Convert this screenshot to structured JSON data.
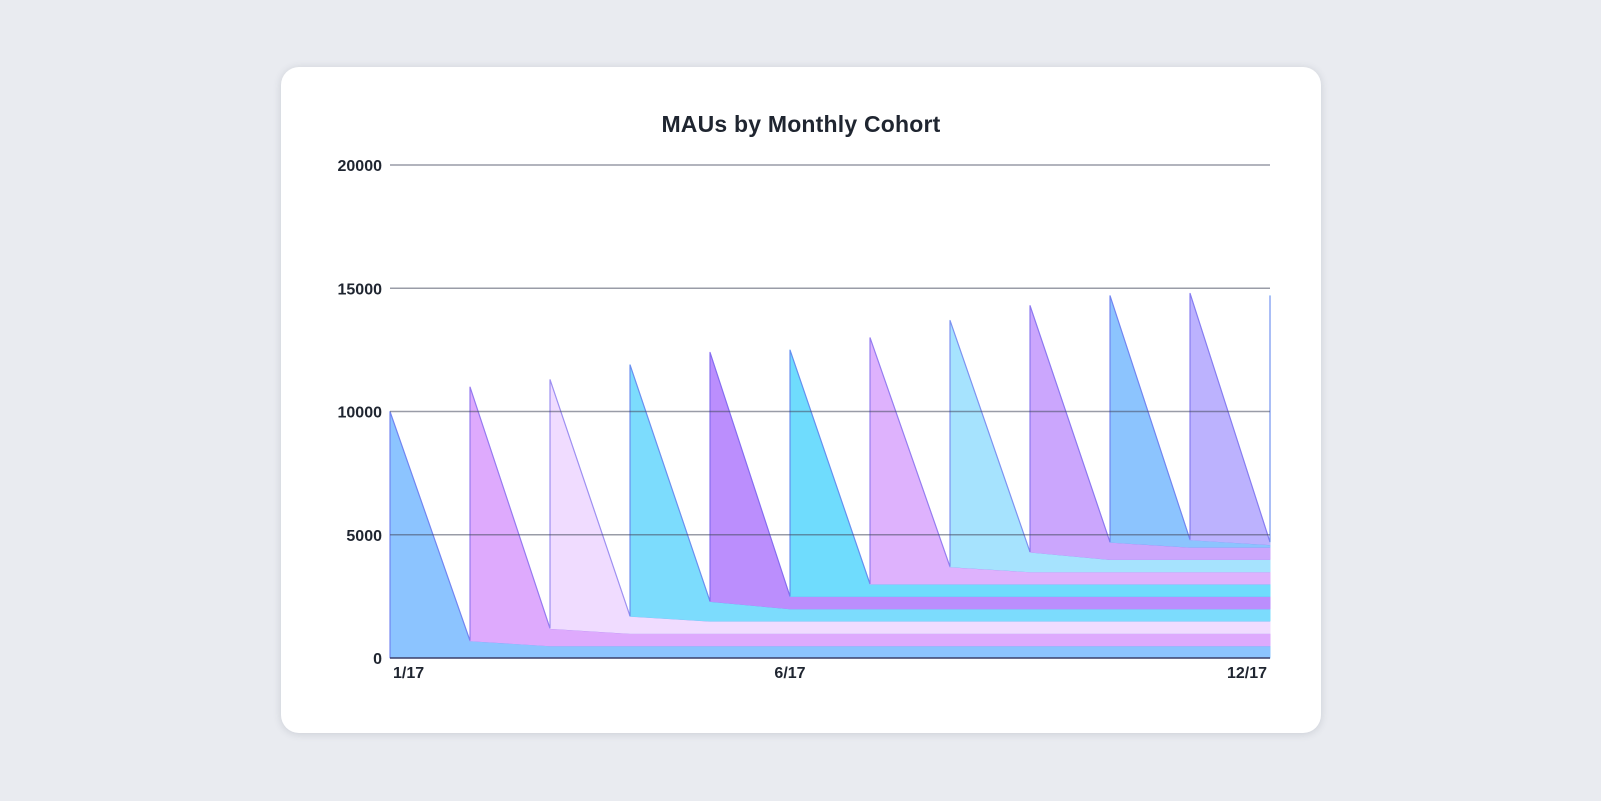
{
  "chart_data": {
    "type": "area",
    "stacked": true,
    "title": "MAUs by Monthly Cohort",
    "xlabel": "",
    "ylabel": "",
    "x": [
      "1/17",
      "2/17",
      "3/17",
      "4/17",
      "5/17",
      "6/17",
      "7/17",
      "8/17",
      "9/17",
      "10/17",
      "11/17",
      "12/17"
    ],
    "x_tick_labels": [
      "1/17",
      "6/17",
      "12/17"
    ],
    "y_tick_labels": [
      "0",
      "5000",
      "10000",
      "15000",
      "20000"
    ],
    "ylim": [
      0,
      20000
    ],
    "grid": true,
    "legend": "none",
    "colors": [
      "#8cc4ff",
      "#deaafd",
      "#f0dcff",
      "#7cdcfd",
      "#bb8efd",
      "#6fdcfd",
      "#deb2fd",
      "#a6e3fe",
      "#cba6fd",
      "#8cc4fe",
      "#bcb2fe",
      "#7de1fe"
    ],
    "series": [
      {
        "values": [
          10000,
          700,
          500,
          500,
          500,
          500,
          500,
          500,
          500,
          500,
          500,
          500
        ]
      },
      {
        "values": [
          null,
          10300,
          700,
          500,
          500,
          500,
          500,
          500,
          500,
          500,
          500,
          500
        ]
      },
      {
        "values": [
          null,
          null,
          10100,
          700,
          500,
          500,
          500,
          500,
          500,
          500,
          500,
          500
        ]
      },
      {
        "values": [
          null,
          null,
          null,
          10200,
          800,
          500,
          500,
          500,
          500,
          500,
          500,
          500
        ]
      },
      {
        "values": [
          null,
          null,
          null,
          null,
          10100,
          500,
          500,
          500,
          500,
          500,
          500,
          500
        ]
      },
      {
        "values": [
          null,
          null,
          null,
          null,
          null,
          10000,
          500,
          500,
          500,
          500,
          500,
          500
        ]
      },
      {
        "values": [
          null,
          null,
          null,
          null,
          null,
          null,
          10000,
          700,
          500,
          500,
          500,
          500
        ]
      },
      {
        "values": [
          null,
          null,
          null,
          null,
          null,
          null,
          null,
          10000,
          800,
          500,
          500,
          500
        ]
      },
      {
        "values": [
          null,
          null,
          null,
          null,
          null,
          null,
          null,
          null,
          10000,
          700,
          500,
          500
        ]
      },
      {
        "values": [
          null,
          null,
          null,
          null,
          null,
          null,
          null,
          null,
          null,
          10000,
          300,
          100
        ]
      },
      {
        "values": [
          null,
          null,
          null,
          null,
          null,
          null,
          null,
          null,
          null,
          null,
          10000,
          100
        ]
      },
      {
        "values": [
          null,
          null,
          null,
          null,
          null,
          null,
          null,
          null,
          null,
          null,
          null,
          10000
        ]
      }
    ]
  }
}
